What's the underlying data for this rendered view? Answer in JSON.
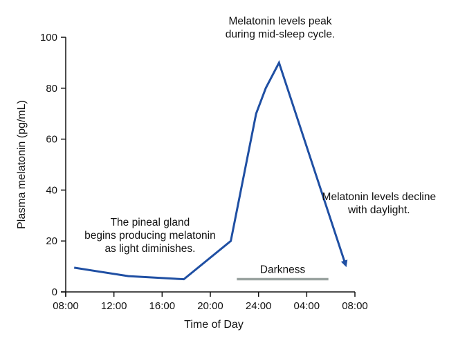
{
  "chart_data": {
    "type": "line",
    "xlabel": "Time of Day",
    "ylabel": "Plasma melatonin (pg/mL)",
    "x_ticks": [
      "08:00",
      "12:00",
      "16:00",
      "20:00",
      "24:00",
      "04:00",
      "08:00"
    ],
    "y_ticks": [
      "0",
      "20",
      "40",
      "60",
      "80",
      "100"
    ],
    "ylim": [
      0,
      100
    ],
    "xlim_hours": [
      8,
      32
    ],
    "series": [
      {
        "color": "#1f4fa3",
        "points": [
          {
            "t": 8.7,
            "y": 9.5
          },
          {
            "t": 13.2,
            "y": 6.2
          },
          {
            "t": 17.8,
            "y": 5.0
          },
          {
            "t": 21.7,
            "y": 20.0
          },
          {
            "t": 23.8,
            "y": 70.0
          },
          {
            "t": 24.6,
            "y": 80.0
          },
          {
            "t": 25.7,
            "y": 90.0
          },
          {
            "t": 31.2,
            "y": 11.0
          }
        ],
        "end_marker": "arrow"
      }
    ],
    "darkness": {
      "label": "Darkness",
      "start_t": 22.2,
      "end_t": 29.8,
      "y": 5.0,
      "color": "#9aa3a0"
    },
    "annotations": [
      {
        "lines": [
          "Melatonin levels peak",
          "during mid-sleep cycle."
        ],
        "t": 25.8,
        "y": 105
      },
      {
        "lines": [
          "The pineal gland",
          "begins producing melatonin",
          "as light diminishes."
        ],
        "t": 15.0,
        "y": 26
      },
      {
        "lines": [
          "Melatonin levels decline",
          "with daylight."
        ],
        "t": 34.0,
        "y": 36
      }
    ],
    "grid": false,
    "legend": "none"
  }
}
